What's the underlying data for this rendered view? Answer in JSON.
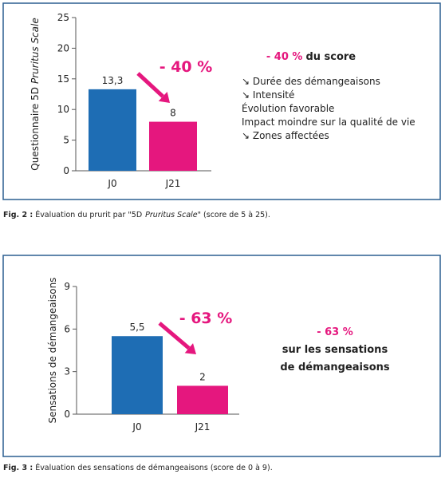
{
  "chart_data": [
    {
      "type": "bar",
      "ylabel": [
        "Questionnaire 5D",
        "Pruritus Scale"
      ],
      "categories": [
        "J0",
        "J21"
      ],
      "values": [
        13.3,
        8
      ],
      "value_labels": [
        "13,3",
        "8"
      ],
      "colors": [
        "#1e6db4",
        "#e5177e"
      ],
      "ylim": [
        0,
        25
      ],
      "yticks": [
        0,
        5,
        10,
        15,
        20,
        25
      ],
      "annotation": "- 40 %",
      "summary": [
        "- 40 %",
        "du score"
      ],
      "notes": [
        "↘ Durée des démangeaisons",
        "↘ Intensité",
        "Évolution favorable",
        "Impact moindre sur la qualité de vie",
        "↘ Zones affectées"
      ],
      "caption": [
        "Fig. 2 :",
        "Évaluation du prurit par \"5D",
        "Pruritus Scale",
        "\" (score de 5 à 25)."
      ]
    },
    {
      "type": "bar",
      "ylabel": [
        "Sensations de démangeaisons"
      ],
      "categories": [
        "J0",
        "J21"
      ],
      "values": [
        5.5,
        2
      ],
      "value_labels": [
        "5,5",
        "2"
      ],
      "colors": [
        "#1e6db4",
        "#e5177e"
      ],
      "ylim": [
        0,
        9
      ],
      "yticks": [
        0,
        3,
        6,
        9
      ],
      "annotation": "- 63 %",
      "summary": [
        "- 63 %",
        "sur les sensations",
        "de démangeaisons"
      ],
      "caption": [
        "Fig. 3 :",
        "Évaluation des sensations de démangeaisons (score de 0 à 9)."
      ]
    }
  ]
}
